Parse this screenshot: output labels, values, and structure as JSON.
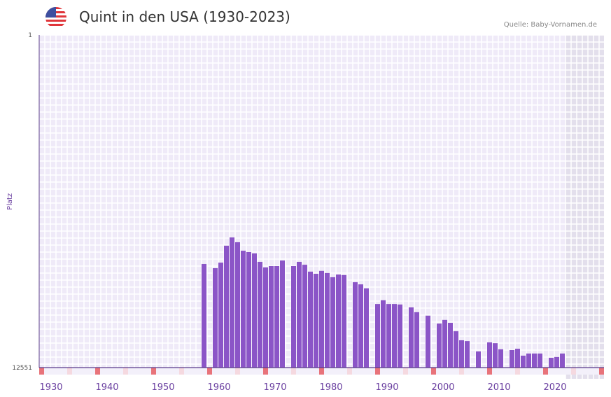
{
  "header": {
    "title": "Quint in den USA (1930-2023)",
    "source": "Quelle: Baby-Vornamen.de",
    "flag_icon": "us-flag-icon"
  },
  "colors": {
    "bar": "#8b55c7",
    "grid_bg": "#efeaf8",
    "forecast_bg": "#e3dfec",
    "marker_red": "#e8737a",
    "marker_pink": "#f5d9e0",
    "axis": "#5a3a8a"
  },
  "chart_data": {
    "type": "bar",
    "title": "Quint in den USA (1930-2023)",
    "xlabel": "",
    "ylabel": "Platz",
    "y_inverted": true,
    "ylim": [
      1,
      12551
    ],
    "y_ticks": [
      "1",
      "12551"
    ],
    "xlim": [
      1928,
      2028
    ],
    "x_ticks": [
      1930,
      1940,
      1950,
      1960,
      1970,
      1980,
      1990,
      2000,
      2010,
      2020
    ],
    "shaded_from_year": 2022,
    "x": [
      1957,
      1959,
      1960,
      1961,
      1962,
      1963,
      1964,
      1965,
      1966,
      1967,
      1968,
      1969,
      1970,
      1971,
      1973,
      1974,
      1975,
      1976,
      1977,
      1978,
      1979,
      1980,
      1981,
      1982,
      1984,
      1985,
      1986,
      1988,
      1989,
      1990,
      1991,
      1992,
      1994,
      1995,
      1997,
      1999,
      2000,
      2001,
      2002,
      2003,
      2004,
      2006,
      2008,
      2009,
      2010,
      2012,
      2013,
      2014,
      2015,
      2016,
      2017,
      2019,
      2020,
      2021
    ],
    "values": [
      8640,
      8800,
      8590,
      7950,
      7640,
      7820,
      8140,
      8190,
      8240,
      8560,
      8770,
      8720,
      8720,
      8510,
      8720,
      8560,
      8670,
      8930,
      9010,
      8900,
      8980,
      9140,
      9040,
      9060,
      9330,
      9410,
      9560,
      10150,
      10010,
      10150,
      10150,
      10170,
      10280,
      10460,
      10590,
      10890,
      10750,
      10860,
      11180,
      11520,
      11550,
      11940,
      11600,
      11630,
      11860,
      11890,
      11840,
      12100,
      12020,
      12020,
      12020,
      12180,
      12150,
      12020
    ]
  }
}
